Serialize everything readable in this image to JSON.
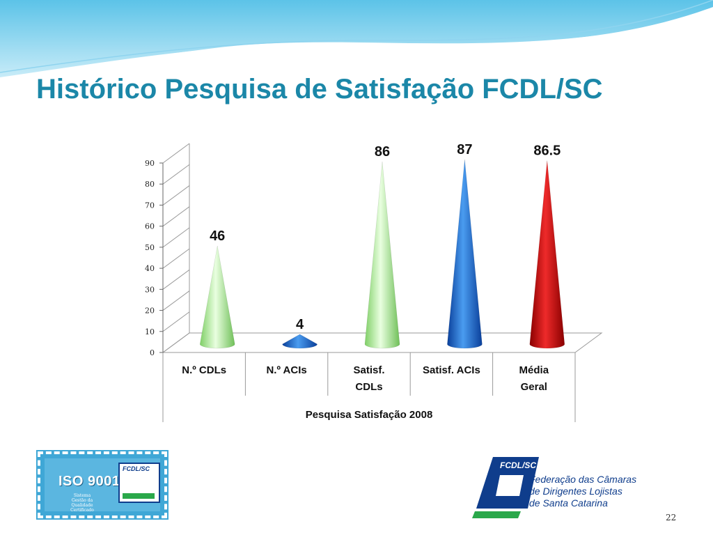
{
  "slide": {
    "title": "Histórico Pesquisa de Satisfação FCDL/SC",
    "page_number": "22"
  },
  "logos": {
    "iso": {
      "name": "ISO 9001",
      "badge": "FCDL/SC",
      "lines": [
        "Sistema",
        "Gestão da",
        "Qualidade",
        "Certificado"
      ]
    },
    "fcdl": {
      "badge": "FCDL/SC",
      "lines": [
        "Federação das Câmaras",
        "de Dirigentes Lojistas",
        "de Santa Catarina"
      ]
    }
  },
  "colors": {
    "title": "#1b87a8",
    "light_green": "#b8f0a0",
    "blue": "#1a6fd0",
    "red": "#d01010"
  },
  "chart_data": {
    "type": "bar",
    "bar_shape": "cone-3d",
    "title": "",
    "xlabel": "Pesquisa Satisfação 2008",
    "ylabel": "",
    "ylim": [
      0,
      90
    ],
    "yticks": [
      "0",
      "10",
      "20",
      "30",
      "40",
      "50",
      "60",
      "70",
      "80",
      "90"
    ],
    "grid": true,
    "categories": [
      [
        "N.º  CDLs"
      ],
      [
        "N.º  ACIs"
      ],
      [
        "Satisf.",
        "CDLs"
      ],
      [
        "Satisf. ACIs"
      ],
      [
        "Média",
        "Geral"
      ]
    ],
    "values": [
      46,
      4,
      86,
      87,
      86.5
    ],
    "data_labels": [
      "46",
      "4",
      "86",
      "87",
      "86.5"
    ],
    "bar_colors": [
      "#b8f0a0",
      "#1a6fd0",
      "#b8f0a0",
      "#1a6fd0",
      "#d01010"
    ]
  }
}
